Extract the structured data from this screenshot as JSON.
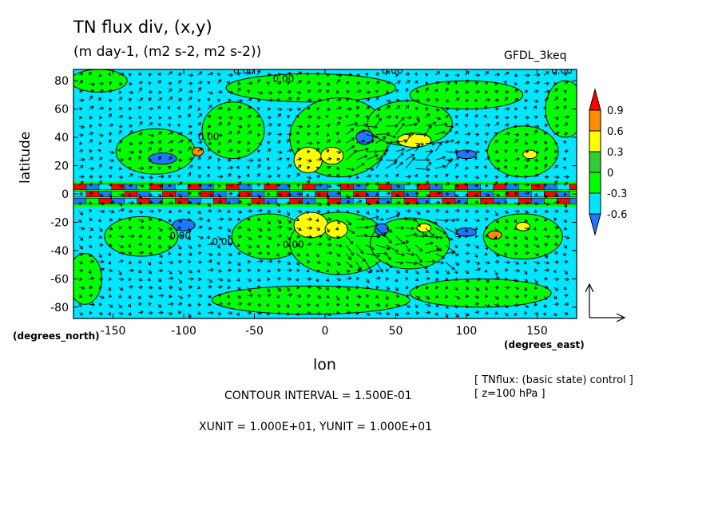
{
  "chart_data": {
    "type": "heatmap",
    "title": "TN flux div, (x,y)",
    "subtitle": "(m day-1, (m2 s-2, m2 s-2))",
    "model_label": "GFDL_3keq",
    "xlabel": "lon",
    "ylabel": "latitude",
    "x_unit_label": "(degrees_east)",
    "y_unit_label": "(degrees_north)",
    "xlim": [
      -178,
      178
    ],
    "ylim": [
      -88,
      88
    ],
    "x_ticks": [
      -150,
      -100,
      -50,
      0,
      50,
      100,
      150
    ],
    "y_ticks": [
      -80,
      -60,
      -40,
      -20,
      0,
      20,
      40,
      60,
      80
    ],
    "colorbar": {
      "levels": [
        -0.6,
        -0.3,
        0,
        0.3,
        0.6,
        0.9
      ],
      "level_labels": [
        "-0.6",
        "-0.3",
        "0",
        "0.3",
        "0.6",
        "0.9"
      ],
      "colors": [
        "#1e78ff",
        "#00e6ff",
        "#00ff00",
        "#33cc33",
        "#ffff00",
        "#ff8c00",
        "#ff0000"
      ],
      "extend": "both"
    },
    "contour_labels": [
      "0.00",
      "0.00",
      "0.00",
      "0.00",
      "0.00",
      "0.00",
      "0.00",
      "0.00"
    ],
    "vector_reference": "arrow-axes"
  },
  "footer": {
    "contour_interval": "CONTOUR INTERVAL = 1.500E-01",
    "units": "XUNIT = 1.000E+01, YUNIT = 1.000E+01",
    "info_line1": "[ TNflux: (basic state) control ]",
    "info_line2": "[ z=100 hPa ]"
  },
  "colors": {
    "dark_blue": "#1e78ff",
    "cyan": "#00e6ff",
    "green": "#00ff00",
    "yellow": "#ffff00",
    "orange": "#ff8c00",
    "red": "#ff0000"
  }
}
